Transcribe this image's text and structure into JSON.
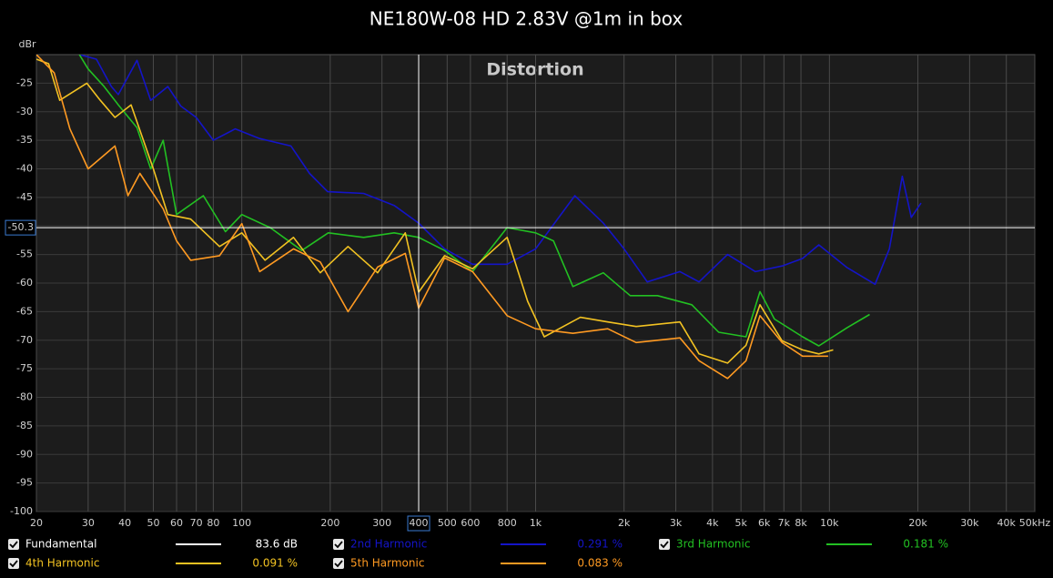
{
  "chart_data": {
    "type": "line",
    "title": "NE180W-08 HD 2.83V @1m in box",
    "subtitle": "Distortion",
    "y_label": "dBr",
    "log_x": true,
    "grid": true,
    "xlim": [
      20,
      50000
    ],
    "ylim": [
      -100,
      -20
    ],
    "xticks": [
      20,
      30,
      40,
      50,
      60,
      70,
      80,
      100,
      200,
      300,
      500,
      600,
      800,
      {
        "value": 1000,
        "label": "1k"
      },
      {
        "value": 2000,
        "label": "2k"
      },
      {
        "value": 3000,
        "label": "3k"
      },
      {
        "value": 4000,
        "label": "4k"
      },
      {
        "value": 5000,
        "label": "5k"
      },
      {
        "value": 6000,
        "label": "6k"
      },
      {
        "value": 7000,
        "label": "7k"
      },
      {
        "value": 8000,
        "label": "8k"
      },
      {
        "value": 10000,
        "label": "10k"
      },
      {
        "value": 20000,
        "label": "20k"
      },
      {
        "value": 30000,
        "label": "30k"
      },
      {
        "value": 40000,
        "label": "40k"
      },
      {
        "value": 50000,
        "label": "50kHz"
      }
    ],
    "yticks": [
      -25,
      -30,
      -35,
      -40,
      -45,
      -50,
      -55,
      -60,
      -65,
      -70,
      -75,
      -80,
      -85,
      -90,
      -95,
      -100
    ],
    "cursor": {
      "x": 400,
      "y": -50.3
    },
    "series": [
      {
        "name": "Fundamental",
        "color": "#ffffff",
        "readout": {
          "value": 83.6,
          "label": "83.6 dB"
        }
      },
      {
        "name": "2nd Harmonic",
        "color": "#1414c8",
        "readout": {
          "value": 0.291,
          "label": "0.291 %"
        },
        "x": [
          28,
          32,
          36,
          38,
          44,
          49,
          56,
          62,
          70,
          80,
          95,
          115,
          147,
          170,
          196,
          260,
          330,
          400,
          490,
          610,
          800,
          1000,
          1360,
          1700,
          2000,
          2400,
          3100,
          3600,
          4500,
          5600,
          6900,
          8100,
          9200,
          11500,
          14300,
          16000,
          17700,
          19000,
          20500
        ],
        "values": [
          -20,
          -20.8,
          -25.6,
          -27,
          -21,
          -28,
          -25.6,
          -29,
          -31,
          -35,
          -33,
          -34.7,
          -36,
          -40.8,
          -44,
          -44.3,
          -46.4,
          -49.5,
          -54,
          -56.7,
          -56.7,
          -54,
          -44.7,
          -49.5,
          -54,
          -59.8,
          -58,
          -59.8,
          -55,
          -58,
          -57,
          -55.7,
          -53.3,
          -57.3,
          -60.2,
          -54,
          -41.3,
          -48.5,
          -46
        ]
      },
      {
        "name": "3rd Harmonic",
        "color": "#22c022",
        "readout": {
          "value": 0.181,
          "label": "0.181 %"
        },
        "x": [
          28,
          30,
          34,
          38,
          44,
          49,
          54,
          60,
          74,
          88,
          100,
          125,
          160,
          197,
          260,
          330,
          400,
          490,
          610,
          800,
          1000,
          1150,
          1340,
          1700,
          2100,
          2600,
          3400,
          4200,
          5200,
          5800,
          6500,
          8100,
          9200,
          11500,
          13700
        ],
        "values": [
          -20,
          -22.5,
          -25.6,
          -28.8,
          -32.8,
          -40,
          -35,
          -48,
          -44.7,
          -51,
          -48,
          -50.3,
          -54.3,
          -51.2,
          -52,
          -51.2,
          -52,
          -54.3,
          -58,
          -50.3,
          -51.2,
          -52.6,
          -60.6,
          -58.2,
          -62.2,
          -62.2,
          -63.8,
          -68.6,
          -69.4,
          -61.5,
          -66.3,
          -69.4,
          -71,
          -67.8,
          -65.5
        ]
      },
      {
        "name": "4th Harmonic",
        "color": "#f2c222",
        "readout": {
          "value": 0.091,
          "label": "0.091 %"
        },
        "x": [
          20,
          22,
          24,
          29.7,
          33,
          37,
          42,
          50,
          56,
          67,
          84,
          100,
          120,
          150,
          185,
          230,
          290,
          360,
          400,
          490,
          610,
          800,
          940,
          1070,
          1420,
          1760,
          2200,
          3100,
          3600,
          4500,
          5200,
          5800,
          6900,
          8100,
          9200,
          10300
        ],
        "values": [
          -20.8,
          -21.6,
          -28,
          -25,
          -28,
          -31,
          -28.8,
          -40,
          -48,
          -48.8,
          -53.6,
          -51.2,
          -56,
          -52,
          -58.2,
          -53.6,
          -58.2,
          -51.2,
          -61.6,
          -55.2,
          -57.5,
          -52,
          -63.2,
          -69.4,
          -66,
          -66.8,
          -67.6,
          -66.8,
          -72.4,
          -74,
          -70.9,
          -63.8,
          -70.1,
          -71.7,
          -72.4,
          -71.7
        ]
      },
      {
        "name": "5th Harmonic",
        "color": "#ff9a22",
        "readout": {
          "value": 0.083,
          "label": "0.083 %"
        },
        "x": [
          20,
          23,
          26,
          30,
          37,
          41,
          45,
          54,
          60,
          67,
          84,
          100,
          115,
          150,
          185,
          230,
          290,
          360,
          400,
          490,
          610,
          800,
          1000,
          1340,
          1760,
          2200,
          3100,
          3600,
          4500,
          5200,
          5800,
          6900,
          8100,
          9900
        ],
        "values": [
          -20,
          -23.2,
          -33,
          -40,
          -36,
          -44.7,
          -40.8,
          -47,
          -52.6,
          -56,
          -55.2,
          -49.6,
          -58,
          -54,
          -56.3,
          -65,
          -57.2,
          -54.8,
          -64.4,
          -55.6,
          -58,
          -65.7,
          -68,
          -68.8,
          -68,
          -70.4,
          -69.6,
          -73.6,
          -76.7,
          -73.6,
          -65.7,
          -70.4,
          -72.8,
          -72.8
        ]
      }
    ]
  }
}
